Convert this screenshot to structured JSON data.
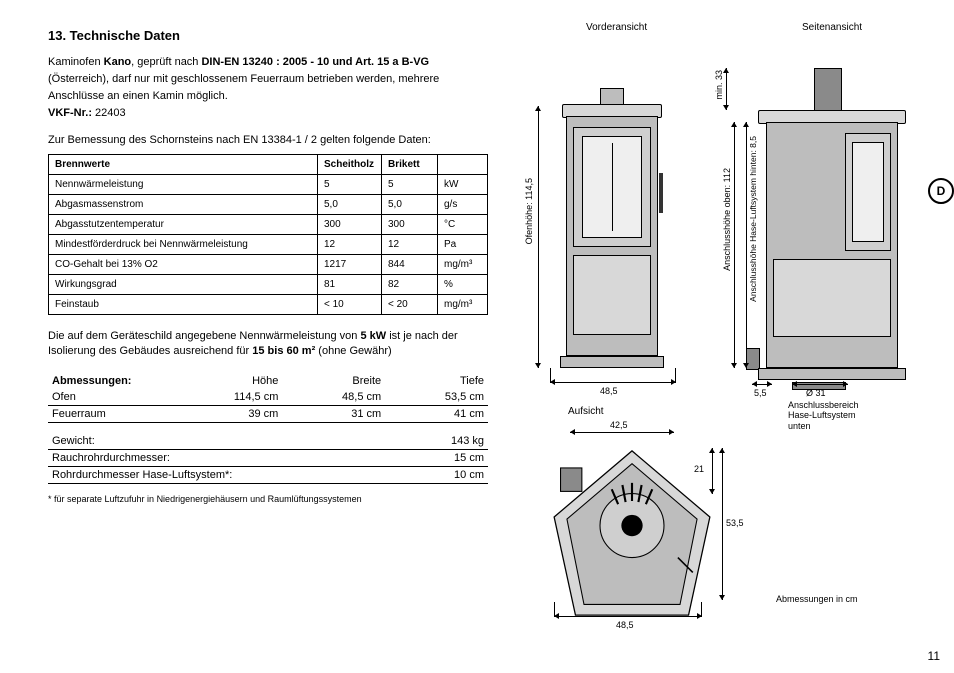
{
  "heading": "13.  Technische Daten",
  "intro": {
    "l1_pre": "Kaminofen ",
    "l1_bold1": "Kano",
    "l1_mid": ", geprüft nach ",
    "l1_bold2": "DIN-EN 13240 : 2005 - 10 und Art. 15 a B-VG",
    "l2": "(Österreich), darf nur mit geschlossenem Feuerraum betrieben werden, mehrere",
    "l3": "Anschlüsse an einen Kamin möglich.",
    "vkf_label": "VKF-Nr.:",
    "vkf_val": " 22403"
  },
  "chimney_note": "Zur Bemessung des Schornsteins nach EN 13384-1 / 2  gelten folgende Daten:",
  "brennwerte": {
    "headers": [
      "Brennwerte",
      "Scheitholz",
      "Brikett",
      ""
    ],
    "rows": [
      [
        "Nennwärmeleistung",
        "5",
        "5",
        "kW"
      ],
      [
        "Abgasmassenstrom",
        "5,0",
        "5,0",
        "g/s"
      ],
      [
        "Abgasstutzentemperatur",
        "300",
        "300",
        "°C"
      ],
      [
        "Mindestförderdruck bei Nennwärmeleistung",
        "12",
        "12",
        "Pa"
      ],
      [
        "CO-Gehalt bei 13% O2",
        "1217",
        "844",
        "mg/m³"
      ],
      [
        "Wirkungsgrad",
        "81",
        "82",
        "%"
      ],
      [
        "Feinstaub",
        "< 10",
        "< 20",
        "mg/m³"
      ]
    ]
  },
  "output_note": {
    "pre": "Die auf dem Geräteschild angegebene Nennwärmeleistung von ",
    "b1": "5 kW",
    "mid": " ist je nach der Isolierung des Gebäudes ausreichend für ",
    "b2": "15 bis 60 m²",
    "post": " (ohne Gewähr)"
  },
  "abm": {
    "title": "Abmessungen:",
    "cols": [
      "Höhe",
      "Breite",
      "Tiefe"
    ],
    "rows": [
      [
        "Ofen",
        "114,5 cm",
        "48,5 cm",
        "53,5 cm"
      ],
      [
        "Feuerraum",
        "39 cm",
        "31 cm",
        "41 cm"
      ]
    ],
    "extras": [
      [
        "Gewicht:",
        "143 kg"
      ],
      [
        "Rauchrohrdurchmesser:",
        "15 cm"
      ],
      [
        "Rohrdurchmesser Hase-Luftsystem*:",
        "10 cm"
      ]
    ],
    "footnote": "* für separate Luftzufuhr in Niedrigenergiehäusern und Raumlüftungssystemen"
  },
  "views": {
    "front": "Vorderansicht",
    "side": "Seitenansicht",
    "top": "Aufsicht",
    "dims_note": "Abmessungen in cm"
  },
  "dims": {
    "ofenhoehe": "Ofenhöhe: 114,5",
    "front_width": "48,5",
    "min33": "min. 33",
    "anschluss_oben": "Anschlusshöhe oben: 112",
    "hase_hinten": "Anschlusshöhe Hase-Luftsystem hinten: 8,5",
    "side_55": "5,5",
    "side_d31": "Ø 31",
    "anschlussbereich": "Anschlussbereich\nHase-Luftsystem\nunten",
    "top_425": "42,5",
    "top_21": "21",
    "top_535": "53,5",
    "top_485": "48,5"
  },
  "page": "11",
  "tab": "D",
  "colors": {
    "body_fill": "#bdbdbd",
    "panel_fill": "#d8d8d8",
    "glass_fill": "#efefef",
    "dark_fill": "#8a8a8a"
  }
}
